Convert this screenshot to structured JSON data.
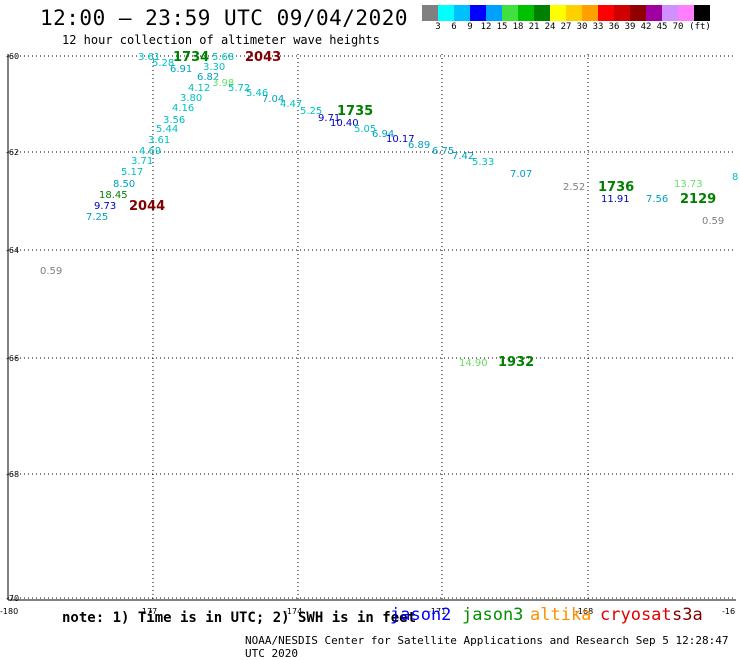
{
  "title": "12:00 – 23:59 UTC 09/04/2020",
  "subtitle": "12 hour collection of altimeter wave heights",
  "legend": {
    "colors": [
      "#808080",
      "#00ffff",
      "#00c0ff",
      "#0000ff",
      "#00a0ff",
      "#40e040",
      "#00c000",
      "#008000",
      "#ffff00",
      "#ffd000",
      "#ffa000",
      "#ff0000",
      "#d00000",
      "#900000",
      "#a000a0",
      "#d090ff",
      "#ff80ff",
      "#000000"
    ],
    "labels": [
      "3",
      "6",
      "9",
      "12",
      "15",
      "18",
      "21",
      "24",
      "27",
      "30",
      "33",
      "36",
      "39",
      "42",
      "45",
      "70",
      "(ft)"
    ]
  },
  "axes": {
    "lat_labels": [
      "-60",
      "-62",
      "-64",
      "-66",
      "-68",
      "-70"
    ],
    "lon_labels": [
      "-180",
      "-177",
      "-174",
      "-171",
      "-168",
      "-16"
    ]
  },
  "tracks": [
    {
      "name": "track-1734",
      "color": "#00b0c0",
      "points": [
        {
          "t": "3.61",
          "c": "#00c0c0"
        },
        {
          "t": "5.28",
          "c": "#00c0c0"
        },
        {
          "t": "6.91",
          "c": "#00a0c0"
        },
        {
          "t": "3.30",
          "c": "#00c0c0"
        },
        {
          "t": "6.82",
          "c": "#00a0c0"
        },
        {
          "t": "4.12",
          "c": "#00c0c0"
        },
        {
          "t": "3.98",
          "c": "#66e066"
        },
        {
          "t": "5.72",
          "c": "#00c0c0"
        },
        {
          "t": "3.80",
          "c": "#00c0c0"
        },
        {
          "t": "4.16",
          "c": "#00c0c0"
        },
        {
          "t": "3.56",
          "c": "#00c0c0"
        },
        {
          "t": "5.44",
          "c": "#00c0c0"
        },
        {
          "t": "3.61",
          "c": "#00c0c0"
        },
        {
          "t": "4.69",
          "c": "#00c0c0"
        },
        {
          "t": "3.71",
          "c": "#00c0c0"
        },
        {
          "t": "5.17",
          "c": "#00c0c0"
        },
        {
          "t": "8.50",
          "c": "#00a0c0"
        },
        {
          "t": "18.45",
          "c": "#008000"
        },
        {
          "t": "9.73",
          "c": "#0000c0"
        },
        {
          "t": "7.25",
          "c": "#00a0c0"
        }
      ]
    },
    {
      "name": "track-1735",
      "color": "#00b0c0",
      "points": [
        {
          "t": "5.68",
          "c": "#00c0c0"
        },
        {
          "t": "5.46",
          "c": "#00c0c0"
        },
        {
          "t": "7.04",
          "c": "#00a0c0"
        },
        {
          "t": "4.47",
          "c": "#00c0c0"
        },
        {
          "t": "5.25",
          "c": "#00c0c0"
        },
        {
          "t": "9.71",
          "c": "#0000c0"
        },
        {
          "t": "10.40",
          "c": "#0000c0"
        },
        {
          "t": "5.05",
          "c": "#00c0c0"
        },
        {
          "t": "6.94",
          "c": "#00a0c0"
        },
        {
          "t": "10.17",
          "c": "#0000c0"
        },
        {
          "t": "6.89",
          "c": "#00a0c0"
        },
        {
          "t": "6.75",
          "c": "#00a0c0"
        },
        {
          "t": "7.42",
          "c": "#00a0c0"
        },
        {
          "t": "5.33",
          "c": "#00c0c0"
        },
        {
          "t": "7.07",
          "c": "#00a0c0"
        }
      ]
    },
    {
      "name": "track-1736",
      "points": [
        {
          "t": "2.52",
          "c": "#808080"
        },
        {
          "t": "11.91",
          "c": "#0000c0"
        },
        {
          "t": "7.56",
          "c": "#00a0c0"
        }
      ]
    },
    {
      "name": "track-2129",
      "points": [
        {
          "t": "13.73",
          "c": "#66e066"
        },
        {
          "t": "0.59",
          "c": "#808080"
        },
        {
          "t": "8",
          "c": "#00c0c0"
        }
      ]
    },
    {
      "name": "track-1932",
      "points": [
        {
          "t": "14.90",
          "c": "#66e066"
        }
      ]
    },
    {
      "name": "isolated",
      "points": [
        {
          "t": "0.59",
          "c": "#808080"
        }
      ]
    }
  ],
  "time_labels": [
    {
      "t": "1734",
      "c": "#008000"
    },
    {
      "t": "2043",
      "c": "#800000"
    },
    {
      "t": "1735",
      "c": "#008000"
    },
    {
      "t": "2044",
      "c": "#800000"
    },
    {
      "t": "1736",
      "c": "#008000"
    },
    {
      "t": "2129",
      "c": "#008000"
    },
    {
      "t": "1932",
      "c": "#008000"
    }
  ],
  "note": "note: 1) Time is in UTC; 2) SWH is in feet",
  "satellites": [
    {
      "name": "jason2",
      "color": "#0000ff"
    },
    {
      "name": "jason3",
      "color": "#009000"
    },
    {
      "name": "altika",
      "color": "#ff9000"
    },
    {
      "name": "cryosat",
      "color": "#e00000"
    },
    {
      "name": "s3a",
      "color": "#800000"
    }
  ],
  "credit": "NOAA/NESDIS Center for Satellite Applications and Research   Sep  5 12:28:47 UTC 2020"
}
